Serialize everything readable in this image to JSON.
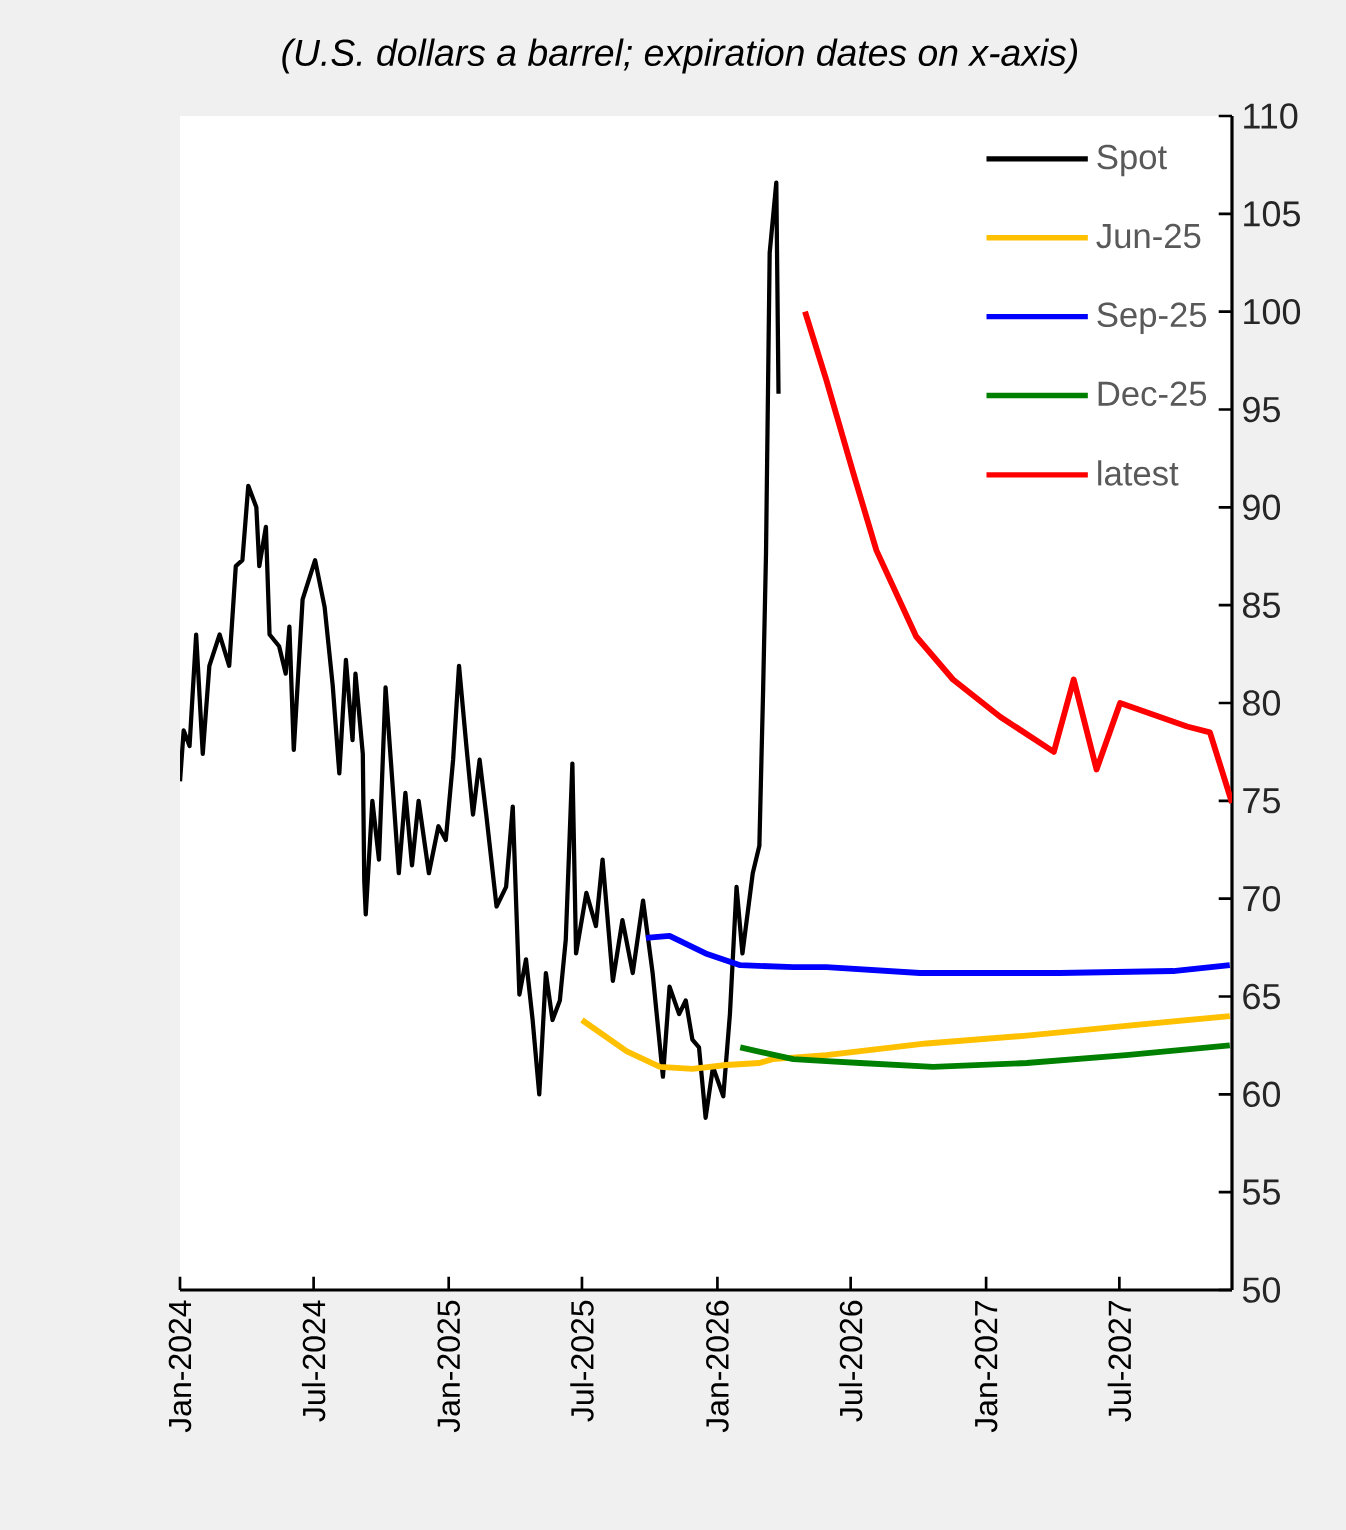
{
  "chart_data": {
    "type": "line",
    "title": "(U.S. dollars a barrel; expiration dates on x-axis)",
    "xlim": [
      "2024-01-01",
      "2027-12-01"
    ],
    "xticks": [
      {
        "value": "2024-01-01",
        "label": "Jan-2024"
      },
      {
        "value": "2024-07-01",
        "label": "Jul-2024"
      },
      {
        "value": "2025-01-01",
        "label": "Jan-2025"
      },
      {
        "value": "2025-07-01",
        "label": "Jul-2025"
      },
      {
        "value": "2026-01-01",
        "label": "Jan-2026"
      },
      {
        "value": "2026-07-01",
        "label": "Jul-2026"
      },
      {
        "value": "2027-01-01",
        "label": "Jan-2027"
      },
      {
        "value": "2027-07-01",
        "label": "Jul-2027"
      }
    ],
    "ylim": [
      50,
      110
    ],
    "yticks": [
      50,
      55,
      60,
      65,
      70,
      75,
      80,
      85,
      90,
      95,
      100,
      105,
      110
    ],
    "legend": "top right",
    "series": [
      {
        "name": "Spot",
        "color": "#000000",
        "x": [
          "2024-01-01",
          "2024-01-06",
          "2024-01-14",
          "2024-01-23",
          "2024-02-01",
          "2024-02-10",
          "2024-02-24",
          "2024-03-08",
          "2024-03-17",
          "2024-03-26",
          "2024-04-03",
          "2024-04-14",
          "2024-04-18",
          "2024-04-27",
          "2024-05-02",
          "2024-05-15",
          "2024-05-24",
          "2024-05-29",
          "2024-06-04",
          "2024-06-16",
          "2024-07-03",
          "2024-07-16",
          "2024-07-27",
          "2024-08-05",
          "2024-08-14",
          "2024-08-23",
          "2024-08-27",
          "2024-09-06",
          "2024-09-08",
          "2024-09-10",
          "2024-09-19",
          "2024-09-28",
          "2024-10-07",
          "2024-10-16",
          "2024-10-25",
          "2024-11-03",
          "2024-11-12",
          "2024-11-21",
          "2024-12-05",
          "2024-12-18",
          "2024-12-28",
          "2025-01-07",
          "2025-01-15",
          "2025-01-25",
          "2025-02-03",
          "2025-02-12",
          "2025-02-21",
          "2025-03-07",
          "2025-03-20",
          "2025-03-29",
          "2025-04-07",
          "2025-04-16",
          "2025-04-25",
          "2025-05-04",
          "2025-05-13",
          "2025-05-22",
          "2025-06-01",
          "2025-06-09",
          "2025-06-18",
          "2025-06-23",
          "2025-07-07",
          "2025-07-20",
          "2025-07-29",
          "2025-08-12",
          "2025-08-25",
          "2025-09-08",
          "2025-09-22",
          "2025-10-05",
          "2025-10-19",
          "2025-10-28",
          "2025-11-10",
          "2025-11-19",
          "2025-11-28",
          "2025-12-07",
          "2025-12-16",
          "2025-12-26",
          "2026-01-09",
          "2026-01-18",
          "2026-01-27",
          "2026-02-04",
          "2026-02-18",
          "2026-02-27",
          "2026-03-04",
          "2026-03-08",
          "2026-03-13",
          "2026-03-22",
          "2026-03-25"
        ],
        "values": [
          76.0,
          78.6,
          77.8,
          83.5,
          77.4,
          81.9,
          83.5,
          81.9,
          87.0,
          87.3,
          91.1,
          90.0,
          87.0,
          89.0,
          83.5,
          82.9,
          81.5,
          83.9,
          77.6,
          85.3,
          87.3,
          84.9,
          80.9,
          76.4,
          82.2,
          78.1,
          81.5,
          77.4,
          70.9,
          69.2,
          75.0,
          72.0,
          80.8,
          76.1,
          71.3,
          75.4,
          71.7,
          75.0,
          71.3,
          73.7,
          73.0,
          77.1,
          81.9,
          77.8,
          74.3,
          77.1,
          74.3,
          69.6,
          70.6,
          74.7,
          65.1,
          66.9,
          63.8,
          60.0,
          66.2,
          63.8,
          64.8,
          67.9,
          76.9,
          67.2,
          70.3,
          68.6,
          72.0,
          65.8,
          68.9,
          66.2,
          69.9,
          66.2,
          60.9,
          65.5,
          64.1,
          64.8,
          62.8,
          62.4,
          58.8,
          61.4,
          59.9,
          64.1,
          70.6,
          67.2,
          71.3,
          72.7,
          80.5,
          87.6,
          103.0,
          106.6,
          95.8
        ]
      },
      {
        "name": "Jun-25",
        "color": "#ffc000",
        "x": [
          "2025-07-01",
          "2025-08-31",
          "2025-10-15",
          "2025-11-28",
          "2026-01-13",
          "2026-02-27",
          "2026-03-17",
          "2026-05-29",
          "2026-10-12",
          "2027-02-25",
          "2027-07-10",
          "2027-11-28"
        ],
        "values": [
          63.8,
          62.2,
          61.4,
          61.3,
          61.5,
          61.6,
          61.8,
          62.0,
          62.6,
          63.0,
          63.5,
          64.0
        ]
      },
      {
        "name": "Sep-25",
        "color": "#0000ff",
        "x": [
          "2025-09-26",
          "2025-10-28",
          "2025-12-16",
          "2026-02-01",
          "2026-04-14",
          "2026-05-29",
          "2026-10-03",
          "2027-04-11",
          "2027-09-12",
          "2027-11-28"
        ],
        "values": [
          68.0,
          68.1,
          67.2,
          66.6,
          66.5,
          66.5,
          66.2,
          66.2,
          66.3,
          66.6
        ]
      },
      {
        "name": "Dec-25",
        "color": "#008000",
        "x": [
          "2026-02-01",
          "2026-04-14",
          "2026-05-29",
          "2026-07-14",
          "2026-10-21",
          "2027-02-25",
          "2027-07-10",
          "2027-11-28"
        ],
        "values": [
          62.4,
          61.8,
          61.7,
          61.6,
          61.4,
          61.6,
          62.0,
          62.5
        ]
      },
      {
        "name": "latest",
        "color": "#ff0000",
        "x": [
          "2026-04-30",
          "2026-05-29",
          "2026-07-05",
          "2026-08-05",
          "2026-09-28",
          "2026-11-17",
          "2027-01-20",
          "2027-04-03",
          "2027-04-30",
          "2027-05-31",
          "2027-07-02",
          "2027-10-01",
          "2027-11-01",
          "2027-12-01"
        ],
        "values": [
          100.0,
          96.5,
          91.7,
          87.8,
          83.4,
          81.2,
          79.3,
          77.5,
          81.2,
          76.6,
          80.0,
          78.8,
          78.5,
          74.9
        ]
      }
    ]
  }
}
